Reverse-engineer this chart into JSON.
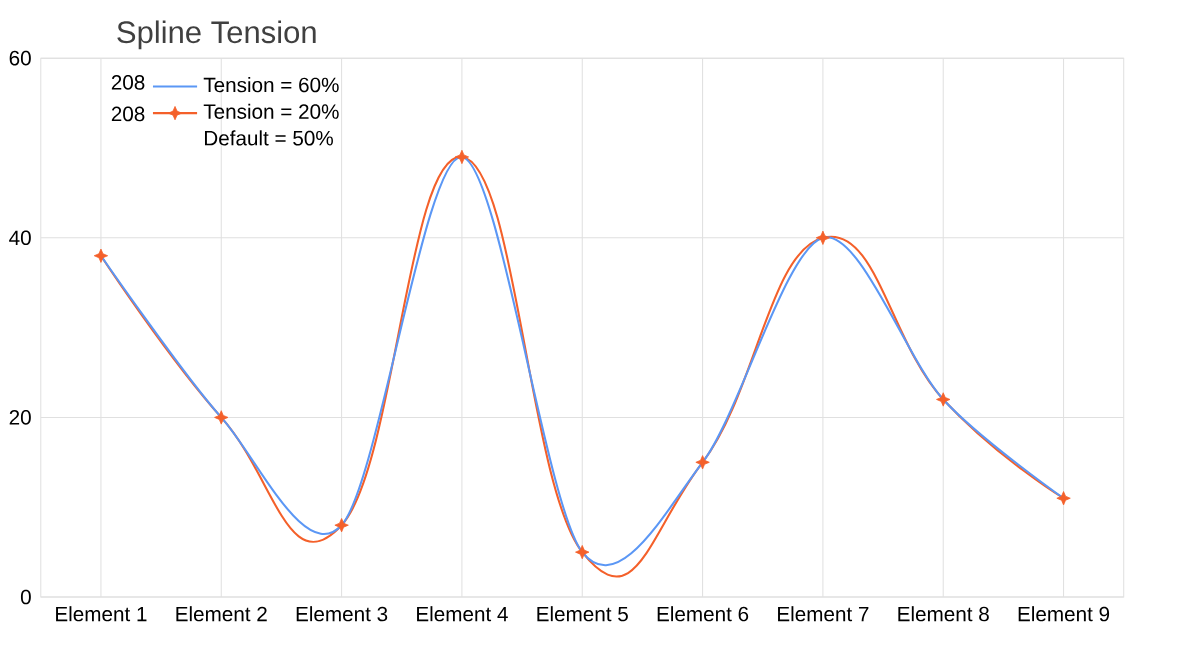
{
  "chart_data": {
    "type": "line",
    "title": "Spline Tension",
    "categories": [
      "Element 1",
      "Element 2",
      "Element 3",
      "Element 4",
      "Element 5",
      "Element 6",
      "Element 7",
      "Element 8",
      "Element 9"
    ],
    "series": [
      {
        "name": "Tension = 60%",
        "color": "#5b97f5",
        "marker": "none",
        "values": [
          38,
          20,
          8,
          49,
          5,
          15,
          40,
          22,
          11
        ]
      },
      {
        "name": "Tension = 20%",
        "color": "#f4602a",
        "marker": "star",
        "values": [
          38,
          20,
          8,
          49,
          5,
          15,
          40,
          22,
          11
        ]
      }
    ],
    "ylim": [
      0,
      60
    ],
    "yticks": [
      0,
      20,
      40,
      60
    ],
    "grid": true,
    "legend": "top left",
    "annotations": [
      "208",
      "208",
      "Default = 50%"
    ]
  }
}
